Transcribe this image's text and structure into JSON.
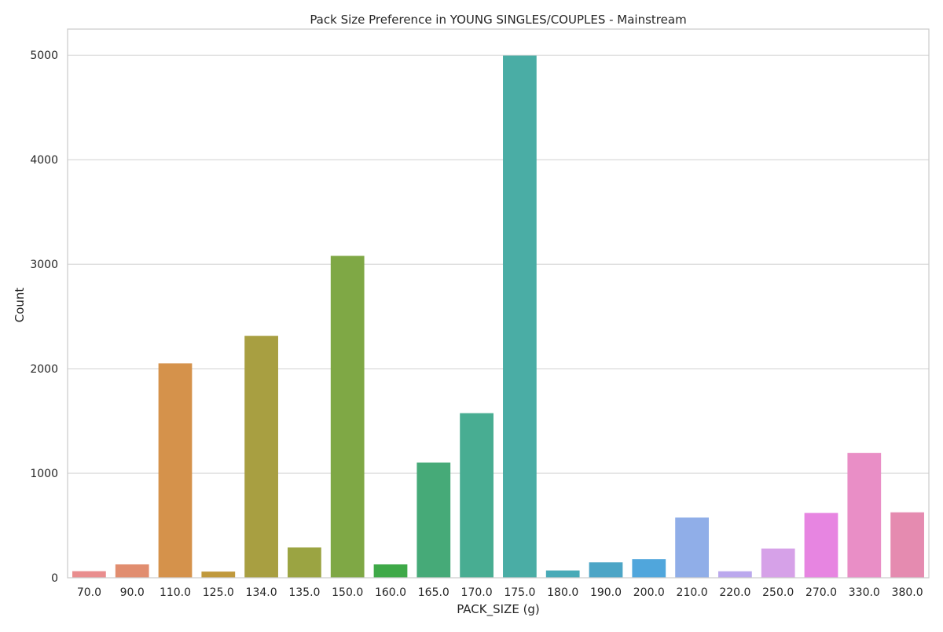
{
  "chart_data": {
    "type": "bar",
    "title": "Pack Size Preference in YOUNG SINGLES/COUPLES - Mainstream",
    "xlabel": "PACK_SIZE (g)",
    "ylabel": "Count",
    "ylim": [
      0,
      5250
    ],
    "yticks": [
      0,
      1000,
      2000,
      3000,
      4000,
      5000
    ],
    "grid": "horizontal",
    "legend": "none",
    "categories": [
      "70.0",
      "90.0",
      "110.0",
      "125.0",
      "134.0",
      "135.0",
      "150.0",
      "160.0",
      "165.0",
      "170.0",
      "175.0",
      "180.0",
      "190.0",
      "200.0",
      "210.0",
      "220.0",
      "250.0",
      "270.0",
      "330.0",
      "380.0"
    ],
    "values": [
      63,
      128,
      2051,
      59,
      2315,
      290,
      3080,
      128,
      1102,
      1575,
      4997,
      70,
      148,
      179,
      576,
      62,
      280,
      620,
      1195,
      626
    ],
    "colors": [
      "#e98d8e",
      "#e18d6f",
      "#d5924b",
      "#c0993c",
      "#a89f41",
      "#9ba442",
      "#7fa845",
      "#3ea948",
      "#46aa78",
      "#48ad92",
      "#4aada5",
      "#48aab7",
      "#4ca5c6",
      "#50a6dc",
      "#90aee8",
      "#bba8ed",
      "#d6a1e8",
      "#e785e1",
      "#e98ec6",
      "#e58bb0"
    ]
  }
}
